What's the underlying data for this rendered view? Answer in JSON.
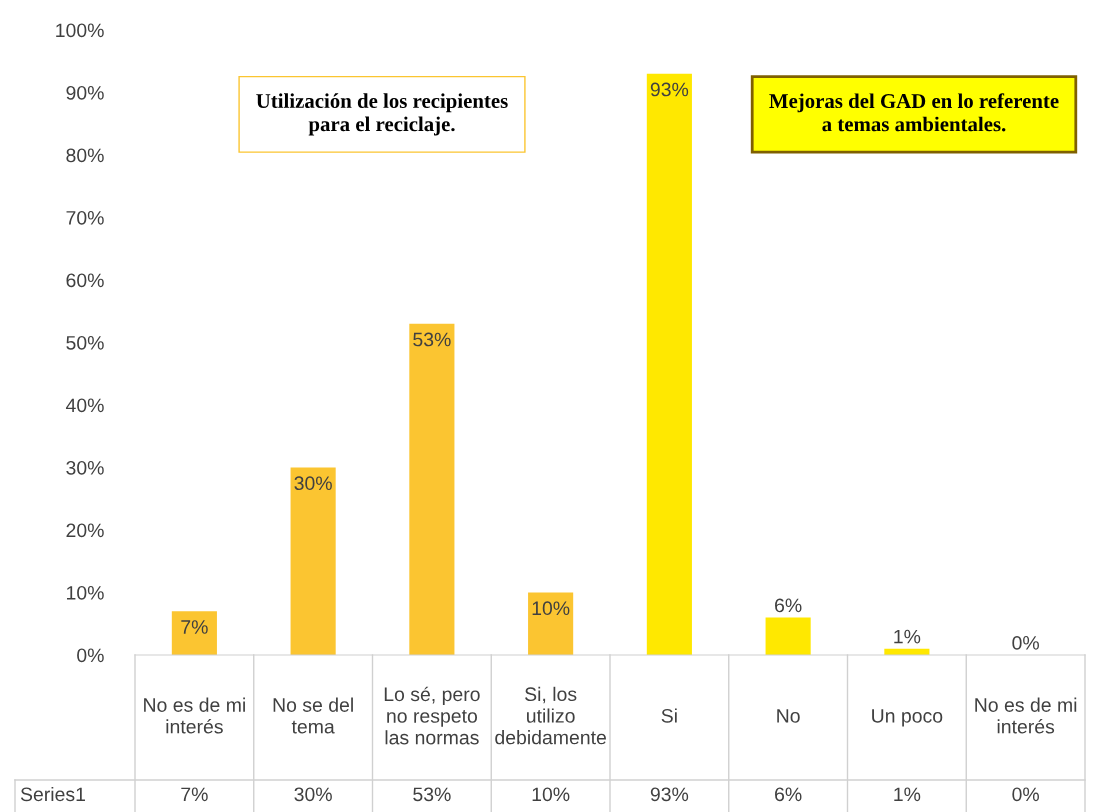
{
  "chart_data": {
    "type": "bar",
    "categories": [
      "No es de mi interés",
      "No se del tema",
      "Lo sé, pero no respeto las normas",
      "Si, los utilizo debidamente",
      "Si",
      "No",
      "Un poco",
      "No es de mi interés"
    ],
    "series": [
      {
        "name": "Series1",
        "values": [
          7,
          30,
          53,
          10,
          93,
          6,
          1,
          0
        ],
        "colors": [
          "#fbc531",
          "#fbc531",
          "#fbc531",
          "#fbc531",
          "#ffe800",
          "#ffe800",
          "#ffe800",
          "#ffe800"
        ],
        "value_labels": [
          "7%",
          "30%",
          "53%",
          "10%",
          "93%",
          "6%",
          "1%",
          "0%"
        ]
      }
    ],
    "ylim": [
      0,
      100
    ],
    "yticks": [
      {
        "value": 0,
        "label": "0%"
      },
      {
        "value": 10,
        "label": "10%"
      },
      {
        "value": 20,
        "label": "20%"
      },
      {
        "value": 30,
        "label": "30%"
      },
      {
        "value": 40,
        "label": "40%"
      },
      {
        "value": 50,
        "label": "50%"
      },
      {
        "value": 60,
        "label": "60%"
      },
      {
        "value": 70,
        "label": "70%"
      },
      {
        "value": 80,
        "label": "80%"
      },
      {
        "value": 90,
        "label": "90%"
      },
      {
        "value": 100,
        "label": "100%"
      }
    ],
    "annotations": [
      "Utilización de los recipientes para el reciclaje.",
      "Mejoras del GAD en lo referente a temas ambientales."
    ],
    "grid": false
  }
}
